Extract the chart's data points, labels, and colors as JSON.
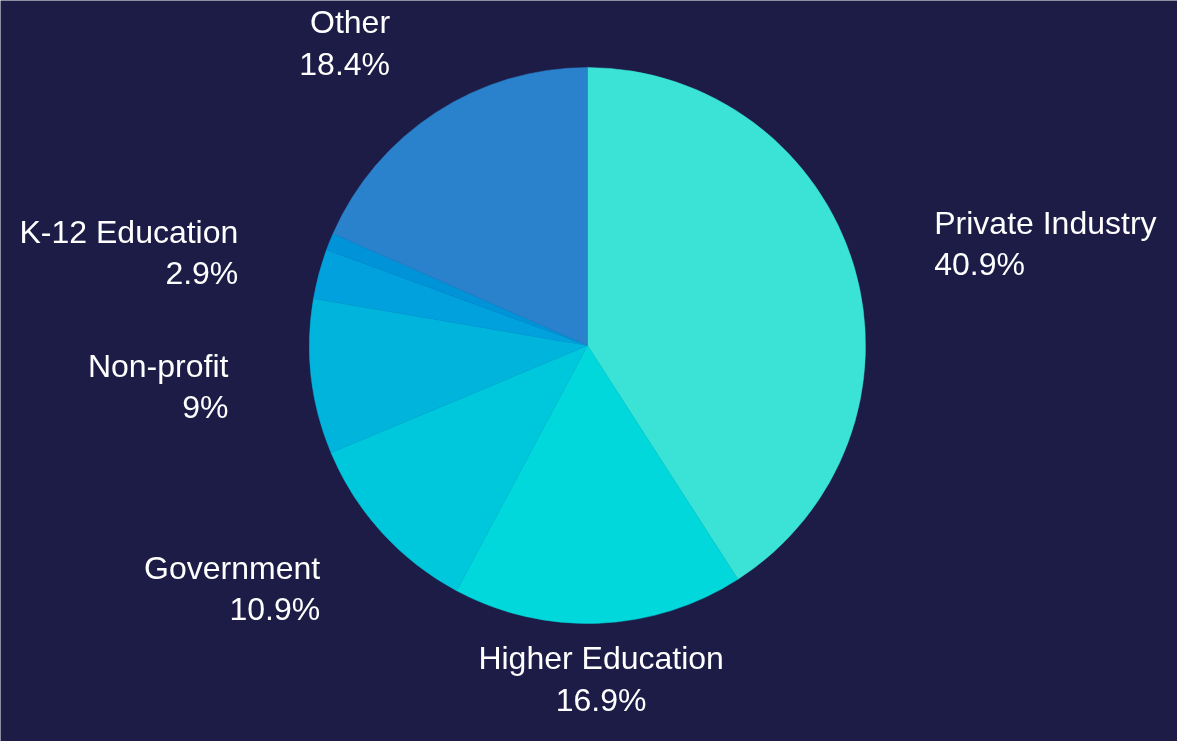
{
  "chart_data": {
    "type": "pie",
    "categories": [
      "Private Industry",
      "Higher Education",
      "Government",
      "Non-profit",
      "K-12 Education",
      null,
      "Other"
    ],
    "values": [
      40.9,
      16.9,
      10.9,
      9,
      2.9,
      1,
      18.4
    ],
    "value_labels": [
      "40.9%",
      "16.9%",
      "10.9%",
      "9%",
      "2.9%",
      null,
      "18.4%"
    ],
    "colors": [
      "#3ae3d5",
      "#00d8db",
      "#00c8dc",
      "#00b4dc",
      "#00a1dc",
      "#0093d8",
      "#2a82cc"
    ]
  }
}
